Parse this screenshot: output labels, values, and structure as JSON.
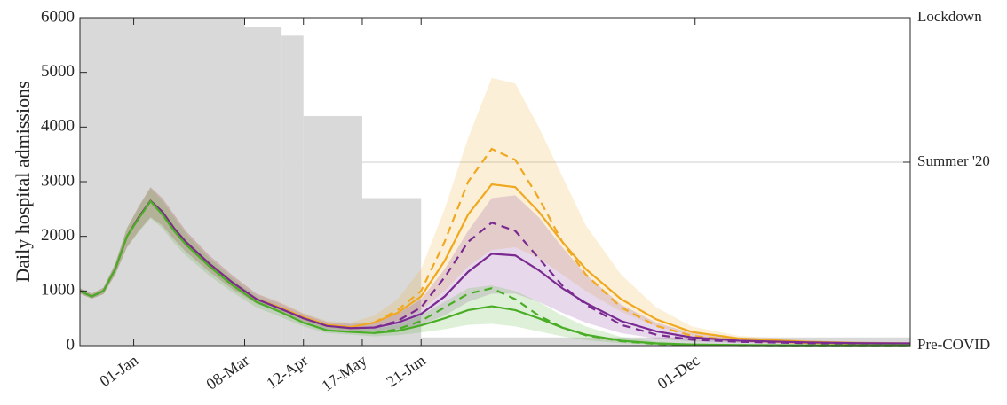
{
  "chart_data": {
    "type": "line",
    "ylabel": "Daily hospital admissions",
    "xlim": [
      -32,
      462
    ],
    "xticks": [
      {
        "value": 0,
        "label": "01-Jan"
      },
      {
        "value": 66,
        "label": "08-Mar"
      },
      {
        "value": 101,
        "label": "12-Apr"
      },
      {
        "value": 136,
        "label": "17-May"
      },
      {
        "value": 171,
        "label": "21-Jun"
      },
      {
        "value": 334,
        "label": "01-Dec"
      }
    ],
    "ylim": [
      0,
      6000
    ],
    "yticks": [
      0,
      1000,
      2000,
      3000,
      4000,
      5000,
      6000
    ],
    "y2lim": [
      0,
      6000
    ],
    "y2ticks": [
      {
        "value": 6000,
        "label": "Lockdown"
      },
      {
        "value": 3357,
        "label": "Summer '20"
      },
      {
        "value": 0,
        "label": "Pre-COVID"
      }
    ],
    "grid": false,
    "restrictions": {
      "color": "#d9d9d9",
      "edges": [
        -32,
        66,
        88,
        101,
        136,
        171,
        462
      ],
      "values": [
        6000,
        5830,
        5670,
        4200,
        2700,
        150
      ]
    },
    "x": [
      -32,
      -25,
      -18,
      -11,
      -4,
      3,
      10,
      17,
      24,
      31,
      45,
      59,
      73,
      87,
      101,
      115,
      129,
      143,
      157,
      171,
      185,
      199,
      213,
      227,
      241,
      255,
      269,
      290,
      311,
      332,
      360,
      400,
      430,
      462
    ],
    "series": [
      {
        "color": "#f0a820",
        "dash": false,
        "values": [
          1000,
          900,
          1000,
          1400,
          2000,
          2350,
          2650,
          2450,
          2150,
          1900,
          1500,
          1150,
          850,
          700,
          520,
          380,
          340,
          420,
          600,
          900,
          1550,
          2400,
          2950,
          2900,
          2450,
          1900,
          1400,
          850,
          480,
          250,
          130,
          70,
          50,
          40
        ],
        "lower": [
          950,
          860,
          940,
          1300,
          1800,
          2100,
          2350,
          2200,
          1950,
          1720,
          1350,
          1030,
          770,
          620,
          450,
          320,
          280,
          330,
          450,
          650,
          1000,
          1450,
          1750,
          1800,
          1600,
          1300,
          1000,
          620,
          350,
          180,
          90,
          50,
          35,
          30
        ],
        "upper": [
          1050,
          950,
          1060,
          1500,
          2150,
          2550,
          2900,
          2700,
          2400,
          2100,
          1650,
          1280,
          950,
          800,
          600,
          450,
          420,
          550,
          850,
          1400,
          2500,
          3800,
          4900,
          4800,
          4000,
          3100,
          2200,
          1300,
          700,
          350,
          180,
          100,
          70,
          60
        ]
      },
      {
        "color": "#7a2a90",
        "dash": false,
        "values": [
          1000,
          900,
          1000,
          1400,
          2000,
          2350,
          2650,
          2450,
          2150,
          1900,
          1500,
          1150,
          850,
          680,
          500,
          360,
          320,
          330,
          420,
          580,
          900,
          1350,
          1680,
          1650,
          1380,
          1050,
          780,
          450,
          260,
          150,
          90,
          60,
          45,
          40
        ],
        "lower": [
          950,
          860,
          940,
          1300,
          1800,
          2100,
          2350,
          2200,
          1950,
          1720,
          1350,
          1030,
          770,
          600,
          430,
          300,
          260,
          260,
          300,
          380,
          550,
          800,
          950,
          950,
          800,
          600,
          420,
          230,
          130,
          80,
          50,
          35,
          30,
          30
        ],
        "upper": [
          1050,
          950,
          1060,
          1500,
          2150,
          2550,
          2900,
          2700,
          2400,
          2100,
          1650,
          1280,
          950,
          780,
          580,
          430,
          400,
          420,
          580,
          850,
          1400,
          2100,
          2700,
          2750,
          2350,
          1800,
          1300,
          750,
          420,
          230,
          140,
          90,
          70,
          60
        ]
      },
      {
        "color": "#4aad26",
        "dash": false,
        "values": [
          1000,
          900,
          1000,
          1400,
          2000,
          2330,
          2640,
          2400,
          2100,
          1850,
          1450,
          1100,
          800,
          620,
          420,
          280,
          250,
          230,
          270,
          370,
          500,
          650,
          720,
          650,
          500,
          330,
          200,
          90,
          40,
          20,
          10,
          5,
          5,
          5
        ],
        "lower": [
          950,
          860,
          940,
          1300,
          1800,
          2080,
          2330,
          2150,
          1880,
          1650,
          1280,
          970,
          700,
          530,
          350,
          230,
          200,
          170,
          190,
          240,
          300,
          380,
          400,
          350,
          260,
          170,
          100,
          45,
          20,
          10,
          5,
          3,
          3,
          3
        ],
        "upper": [
          1050,
          950,
          1060,
          1500,
          2150,
          2530,
          2880,
          2650,
          2350,
          2050,
          1600,
          1230,
          900,
          720,
          500,
          340,
          310,
          310,
          380,
          560,
          800,
          1050,
          1100,
          1000,
          800,
          550,
          350,
          160,
          70,
          35,
          20,
          10,
          10,
          10
        ]
      },
      {
        "color": "#f0a820",
        "dash": true,
        "values": [
          null,
          null,
          null,
          null,
          null,
          null,
          null,
          null,
          null,
          null,
          null,
          null,
          null,
          null,
          null,
          null,
          null,
          420,
          650,
          1000,
          1900,
          3000,
          3600,
          3400,
          2700,
          1900,
          1300,
          700,
          360,
          180,
          90,
          50,
          40,
          30
        ]
      },
      {
        "color": "#7a2a90",
        "dash": true,
        "values": [
          null,
          null,
          null,
          null,
          null,
          null,
          null,
          null,
          null,
          null,
          null,
          null,
          null,
          null,
          null,
          null,
          null,
          330,
          450,
          700,
          1250,
          1900,
          2250,
          2100,
          1600,
          1100,
          750,
          380,
          200,
          110,
          70,
          45,
          35,
          30
        ]
      },
      {
        "color": "#4aad26",
        "dash": true,
        "values": [
          null,
          null,
          null,
          null,
          null,
          null,
          null,
          null,
          null,
          null,
          null,
          null,
          null,
          null,
          null,
          null,
          null,
          230,
          300,
          450,
          700,
          950,
          1050,
          850,
          550,
          330,
          190,
          80,
          30,
          15,
          8,
          5,
          5,
          5
        ]
      }
    ]
  }
}
